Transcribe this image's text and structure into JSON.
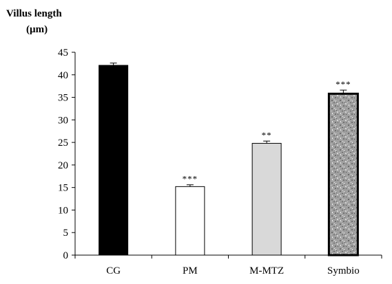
{
  "chart_data": {
    "type": "bar",
    "ylabel": [
      "Villus length",
      "(µm)"
    ],
    "categories": [
      "CG",
      "PM",
      "M-MTZ",
      "Symbio"
    ],
    "values": [
      42.1,
      15.2,
      24.8,
      35.8
    ],
    "errors": [
      0.5,
      0.4,
      0.5,
      0.8
    ],
    "significance": [
      "",
      "***",
      "**",
      "***"
    ],
    "ylim": [
      0,
      45
    ],
    "yticks": [
      0,
      5,
      10,
      15,
      20,
      25,
      30,
      35,
      40,
      45
    ],
    "grid": false,
    "bar_styles": [
      "solid-black",
      "white",
      "light-gray",
      "speckled-gray"
    ],
    "colors": {
      "black": "#000000",
      "white": "#ffffff",
      "light_gray": "#d9d9d9",
      "speckle_base": "#9a9a9a"
    }
  }
}
